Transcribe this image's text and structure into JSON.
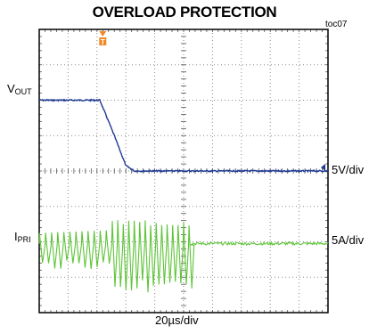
{
  "title": "OVERLOAD PROTECTION",
  "toc": "toc07",
  "labels": {
    "vout_main": "V",
    "vout_sub": "OUT",
    "ipri_main": "I",
    "ipri_sub": "PRI",
    "vscale": "5V/div",
    "iscale": "5A/div",
    "timebase": "20µs/div"
  },
  "chart_data": {
    "type": "line",
    "title": "OVERLOAD PROTECTION",
    "xlabel": "20µs/div",
    "grid": true,
    "x_divisions": 10,
    "y_divisions": 8,
    "series": [
      {
        "name": "VOUT",
        "scale": "5V/div",
        "x_div": [
          0,
          2.1,
          2.6,
          3.0,
          3.3,
          10
        ],
        "y_div_above_ref": [
          2.0,
          2.0,
          1.0,
          0.15,
          0.0,
          0.0
        ]
      },
      {
        "name": "IPRI",
        "scale": "5A/div",
        "x_div": [
          0,
          2.5,
          5.2,
          10
        ],
        "envelope_peak_div": [
          0.3,
          0.5,
          0.7,
          0.0
        ],
        "envelope_trough_div": [
          -0.6,
          -1.2,
          -1.4,
          0.0
        ]
      }
    ],
    "colors": {
      "vout": "#1f3a93",
      "ipri": "#5dc437",
      "marker": "#f08a24"
    }
  }
}
